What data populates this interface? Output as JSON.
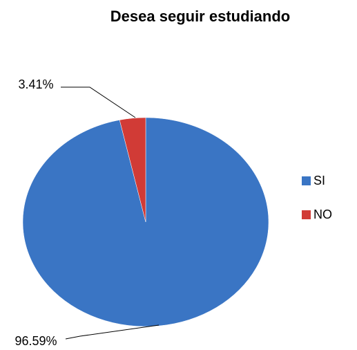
{
  "chart_data": {
    "type": "pie",
    "title": "Desea seguir estudiando",
    "categories": [
      "SI",
      "NO"
    ],
    "values": [
      96.59,
      3.41
    ],
    "value_labels": [
      "96.59%",
      "3.41%"
    ],
    "colors": [
      "#3a75c4",
      "#d13b36"
    ],
    "legend": "right"
  }
}
